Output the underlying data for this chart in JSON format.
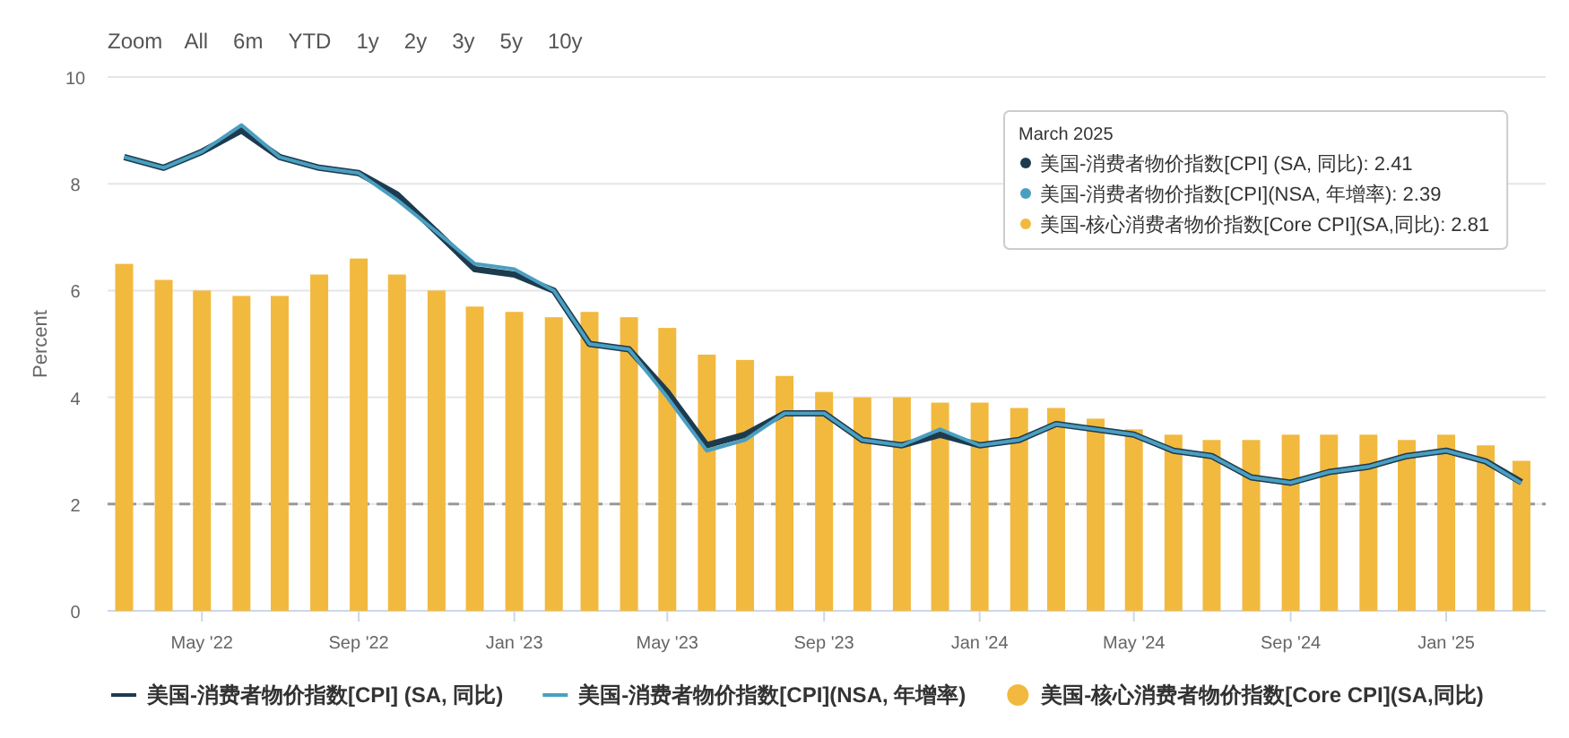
{
  "chart_data": {
    "type": "bar",
    "ylabel": "Percent",
    "ylim": [
      0,
      10
    ],
    "yticks": [
      0,
      2,
      4,
      6,
      8,
      10
    ],
    "xlim": [
      "2022-02-16",
      "2025-03-20"
    ],
    "xticks": [
      {
        "value": "2022-05",
        "label": "May '22"
      },
      {
        "value": "2022-09",
        "label": "Sep '22"
      },
      {
        "value": "2023-01",
        "label": "Jan '23"
      },
      {
        "value": "2023-05",
        "label": "May '23"
      },
      {
        "value": "2023-09",
        "label": "Sep '23"
      },
      {
        "value": "2024-01",
        "label": "Jan '24"
      },
      {
        "value": "2024-05",
        "label": "May '24"
      },
      {
        "value": "2024-09",
        "label": "Sep '24"
      },
      {
        "value": "2025-01",
        "label": "Jan '25"
      }
    ],
    "x": [
      "2022-03",
      "2022-04",
      "2022-05",
      "2022-06",
      "2022-07",
      "2022-08",
      "2022-09",
      "2022-10",
      "2022-11",
      "2022-12",
      "2023-01",
      "2023-02",
      "2023-03",
      "2023-04",
      "2023-05",
      "2023-06",
      "2023-07",
      "2023-08",
      "2023-09",
      "2023-10",
      "2023-11",
      "2023-12",
      "2024-01",
      "2024-02",
      "2024-03",
      "2024-04",
      "2024-05",
      "2024-06",
      "2024-07",
      "2024-08",
      "2024-09",
      "2024-10",
      "2024-11",
      "2024-12",
      "2025-01",
      "2025-02",
      "2025-03"
    ],
    "series": [
      {
        "name": "美国-消费者物价指数[CPI] (SA, 同比)",
        "type": "line",
        "color": "#1d3b4f",
        "values": [
          8.5,
          8.3,
          8.6,
          9.0,
          8.5,
          8.3,
          8.2,
          7.8,
          7.1,
          6.4,
          6.3,
          6.0,
          5.0,
          4.9,
          4.1,
          3.1,
          3.3,
          3.7,
          3.7,
          3.2,
          3.1,
          3.3,
          3.1,
          3.2,
          3.5,
          3.4,
          3.3,
          3.0,
          2.9,
          2.5,
          2.4,
          2.6,
          2.7,
          2.9,
          3.0,
          2.8,
          2.41
        ]
      },
      {
        "name": "美国-消费者物价指数[CPI](NSA, 年增率)",
        "type": "line",
        "color": "#4a9fc1",
        "values": [
          8.5,
          8.3,
          8.6,
          9.1,
          8.5,
          8.3,
          8.2,
          7.7,
          7.1,
          6.5,
          6.4,
          6.0,
          5.0,
          4.9,
          4.0,
          3.0,
          3.2,
          3.7,
          3.7,
          3.2,
          3.1,
          3.4,
          3.1,
          3.2,
          3.5,
          3.4,
          3.3,
          3.0,
          2.9,
          2.5,
          2.4,
          2.6,
          2.7,
          2.9,
          3.0,
          2.8,
          2.39
        ]
      },
      {
        "name": "美国-核心消费者物价指数[Core CPI](SA,同比)",
        "color": "#f2b93f",
        "values": [
          6.5,
          6.2,
          6.0,
          5.9,
          5.9,
          6.3,
          6.6,
          6.3,
          6.0,
          5.7,
          5.6,
          5.5,
          5.6,
          5.5,
          5.3,
          4.8,
          4.7,
          4.4,
          4.1,
          4.0,
          4.0,
          3.9,
          3.9,
          3.8,
          3.8,
          3.6,
          3.4,
          3.3,
          3.2,
          3.2,
          3.3,
          3.3,
          3.3,
          3.2,
          3.3,
          3.1,
          2.81
        ]
      }
    ],
    "ref_lines": [
      {
        "axis": "y",
        "value": 2,
        "color": "#999999",
        "line_style": "dashed"
      }
    ],
    "grid": "y",
    "legend": "bottom",
    "annotations": [
      "Zoom",
      "All",
      "6m",
      "YTD",
      "1y",
      "2y",
      "3y",
      "5y",
      "10y",
      "March 2025",
      "美国-消费者物价指数[CPI] (SA, 同比): 2.41",
      "美国-消费者物价指数[CPI](NSA, 年增率): 2.39",
      "美国-核心消费者物价指数[Core CPI](SA,同比): 2.81"
    ]
  }
}
